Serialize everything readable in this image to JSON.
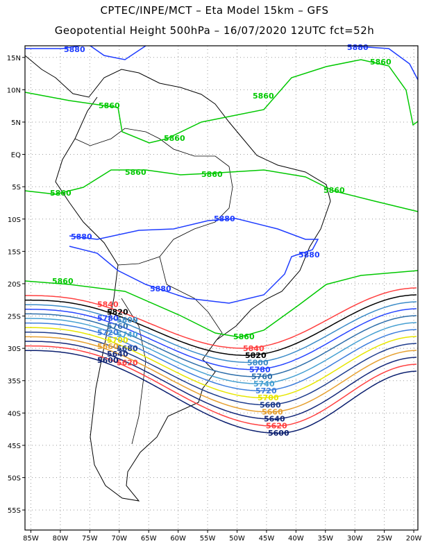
{
  "header": {
    "title_line1": "CPTEC/INPE/MCT –  Eta Model 15km – GFS",
    "title_line2": "Geopotential Height 500hPa – 16/07/2020 12UTC fct=52h"
  },
  "axes": {
    "lon_labels": [
      "85W",
      "80W",
      "75W",
      "70W",
      "65W",
      "60W",
      "55W",
      "50W",
      "45W",
      "40W",
      "35W",
      "30W",
      "25W",
      "20W"
    ],
    "lon_values": [
      -85,
      -80,
      -75,
      -70,
      -65,
      -60,
      -55,
      -50,
      -45,
      -40,
      -35,
      -30,
      -25,
      -20
    ],
    "lat_labels": [
      "15N",
      "10N",
      "5N",
      "EQ",
      "5S",
      "10S",
      "15S",
      "20S",
      "25S",
      "30S",
      "35S",
      "40S",
      "45S",
      "50S",
      "55S"
    ],
    "lat_values": [
      15,
      10,
      5,
      0,
      -5,
      -10,
      -15,
      -20,
      -25,
      -30,
      -35,
      -40,
      -45,
      -50,
      -55
    ],
    "lon_range": [
      -86,
      -19.3
    ],
    "lat_range": [
      16.8,
      -58.1
    ]
  },
  "contours": {
    "c5880": {
      "label": "5880",
      "color": "#1e3cff"
    },
    "c5860": {
      "label": "5860",
      "color": "#00c800"
    },
    "bands": [
      {
        "label": "5840",
        "color": "#ff4040"
      },
      {
        "label": "5820",
        "color": "#000000"
      },
      {
        "label": "5800",
        "color": "#3c8cc8"
      },
      {
        "label": "5780",
        "color": "#2846ff"
      },
      {
        "label": "5760",
        "color": "#2d6eaa"
      },
      {
        "label": "5740",
        "color": "#46a0d2"
      },
      {
        "label": "5720",
        "color": "#3c7ddc"
      },
      {
        "label": "5700",
        "color": "#e6e600"
      },
      {
        "label": "5680",
        "color": "#1e3c8c"
      },
      {
        "label": "5660",
        "color": "#e6a030"
      },
      {
        "label": "5640",
        "color": "#14287a"
      },
      {
        "label": "5620",
        "color": "#ff4040"
      },
      {
        "label": "5600",
        "color": "#0a1e6e"
      }
    ]
  }
}
